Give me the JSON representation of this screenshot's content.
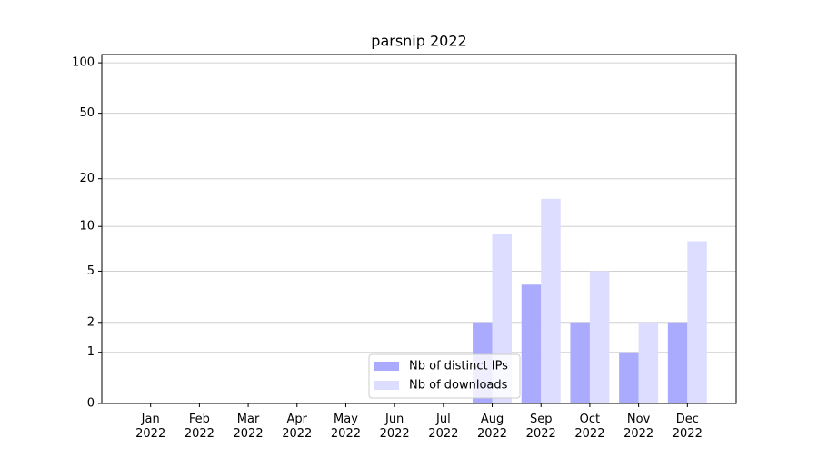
{
  "chart_data": {
    "type": "bar",
    "title": "parsnip 2022",
    "categories": [
      "Jan\n2022",
      "Feb\n2022",
      "Mar\n2022",
      "Apr\n2022",
      "May\n2022",
      "Jun\n2022",
      "Jul\n2022",
      "Aug\n2022",
      "Sep\n2022",
      "Oct\n2022",
      "Nov\n2022",
      "Dec\n2022"
    ],
    "series": [
      {
        "name": "Nb of distinct IPs",
        "color": "#aaaaff",
        "values": [
          0,
          0,
          0,
          0,
          0,
          0,
          0,
          2,
          4,
          2,
          1,
          2
        ]
      },
      {
        "name": "Nb of downloads",
        "color": "#ddddff",
        "values": [
          0,
          0,
          0,
          0,
          0,
          0,
          0,
          9,
          15,
          5,
          2,
          8
        ]
      }
    ],
    "yscale": "log1p",
    "ylim": [
      0,
      112
    ],
    "yticks": [
      0,
      1,
      2,
      5,
      10,
      20,
      50,
      100
    ],
    "grid": true,
    "legend": "lower center"
  }
}
